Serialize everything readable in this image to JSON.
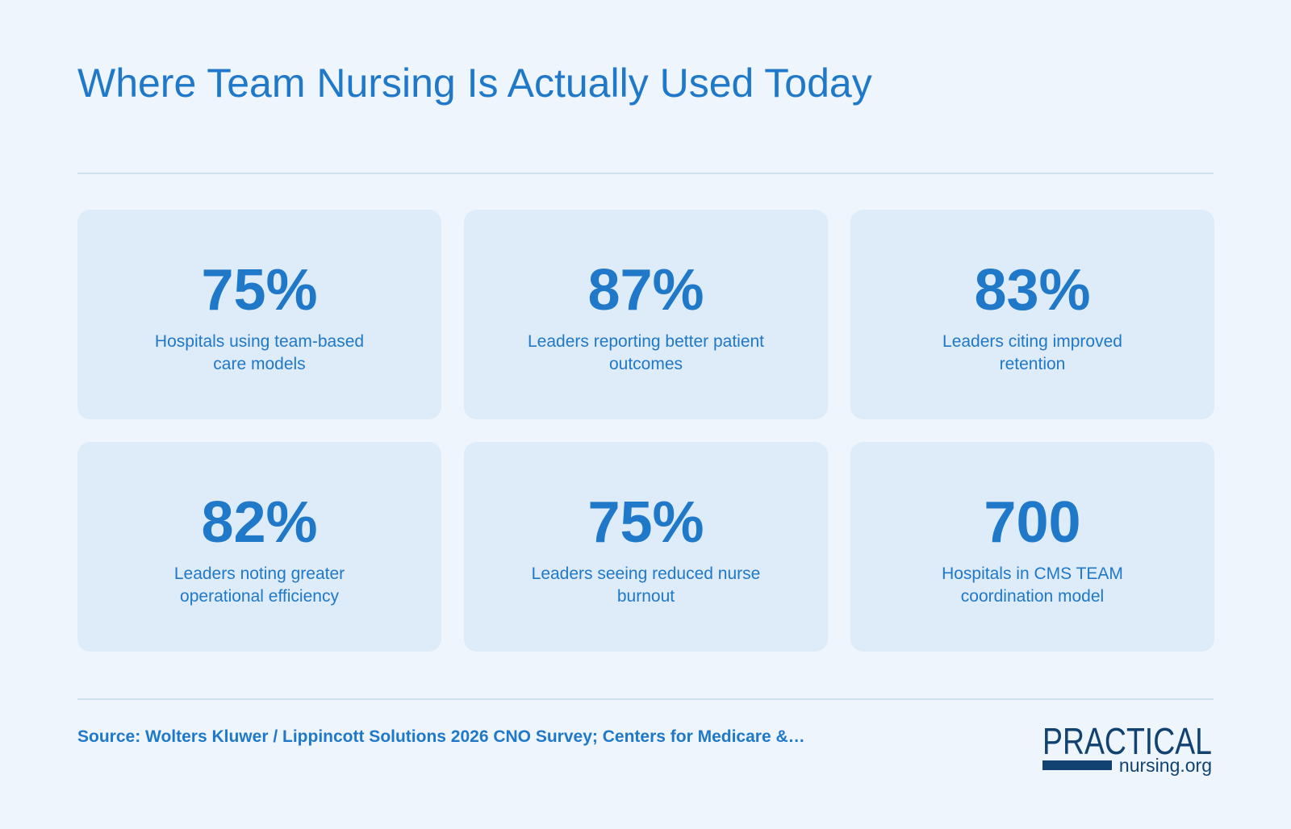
{
  "title": "Where Team Nursing Is Actually Used Today",
  "cards": [
    {
      "value": "75%",
      "label": "Hospitals using team-based care models"
    },
    {
      "value": "87%",
      "label": "Leaders reporting better patient outcomes"
    },
    {
      "value": "83%",
      "label": "Leaders citing improved retention"
    },
    {
      "value": "82%",
      "label": "Leaders noting greater operational efficiency"
    },
    {
      "value": "75%",
      "label": "Leaders seeing reduced nurse burnout"
    },
    {
      "value": "700",
      "label": "Hospitals in CMS TEAM coordination model"
    }
  ],
  "source": "Source: Wolters Kluwer / Lippincott Solutions 2026 CNO Survey; Centers for Medicare &…",
  "logo": {
    "line1": "PRACTICAL",
    "line2": "nursing.org"
  },
  "colors": {
    "accent": "#1f78c8",
    "card_bg": "#deebf8",
    "page_bg": "#eef5fd",
    "logo_navy": "#12426f"
  }
}
